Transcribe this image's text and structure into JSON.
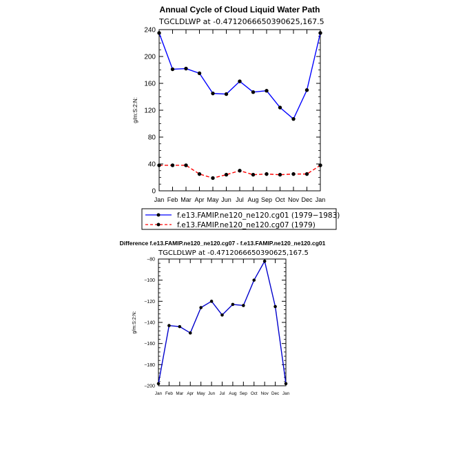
{
  "colors": {
    "series1": "#0000ff",
    "series2": "#ff0000",
    "diff": "#0000cc",
    "axis": "#000000"
  },
  "chart_data": [
    {
      "type": "line",
      "title": "Annual Cycle of Cloud Liquid Water Path",
      "subtitle": "TGCLDLWP  at  -0.4712066650390625,167.5",
      "ylabel": "g/m:S:2:N:",
      "xlabel": "",
      "categories": [
        "Jan",
        "Feb",
        "Mar",
        "Apr",
        "May",
        "Jun",
        "Jul",
        "Aug",
        "Sep",
        "Oct",
        "Nov",
        "Dec",
        "Jan"
      ],
      "yticks": [
        "0",
        "40",
        "80",
        "120",
        "160",
        "200",
        "240"
      ],
      "ylim": [
        0,
        240
      ],
      "grid": false,
      "legend_placement": "bottom",
      "series": [
        {
          "name": "f.e13.FAMIP.ne120_ne120.cg01 (1979−1983)",
          "values": [
            235,
            181,
            182,
            175,
            145,
            144,
            163,
            147,
            149,
            124,
            107,
            150,
            235
          ],
          "color": "#0000ff",
          "dash": "solid"
        },
        {
          "name": "f.e13.FAMIP.ne120_ne120.cg07 (1979)",
          "values": [
            38,
            38,
            38,
            25,
            19,
            24,
            30,
            24,
            25,
            24,
            25,
            25,
            38
          ],
          "color": "#ff0000",
          "dash": "dashed"
        }
      ]
    },
    {
      "type": "line",
      "title": "Difference f.e13.FAMIP.ne120_ne120.cg07 - f.e13.FAMIP.ne120_ne120.cg01",
      "subtitle": "TGCLDLWP  at  -0.4712066650390625,167.5",
      "ylabel": "g/m:S:2:N:",
      "xlabel": "",
      "categories": [
        "Jan",
        "Feb",
        "Mar",
        "Apr",
        "May",
        "Jun",
        "Jul",
        "Aug",
        "Sep",
        "Oct",
        "Nov",
        "Dec",
        "Jan"
      ],
      "yticks": [
        "−200",
        "−180",
        "−160",
        "−140",
        "−120",
        "−100",
        "−80"
      ],
      "ylim": [
        -200,
        -80
      ],
      "grid": false,
      "series": [
        {
          "values": [
            -198,
            -143,
            -144,
            -150,
            -126,
            -120,
            -133,
            -123,
            -124,
            -100,
            -82,
            -125,
            -198
          ],
          "color": "#0000cc",
          "dash": "solid"
        }
      ]
    }
  ]
}
